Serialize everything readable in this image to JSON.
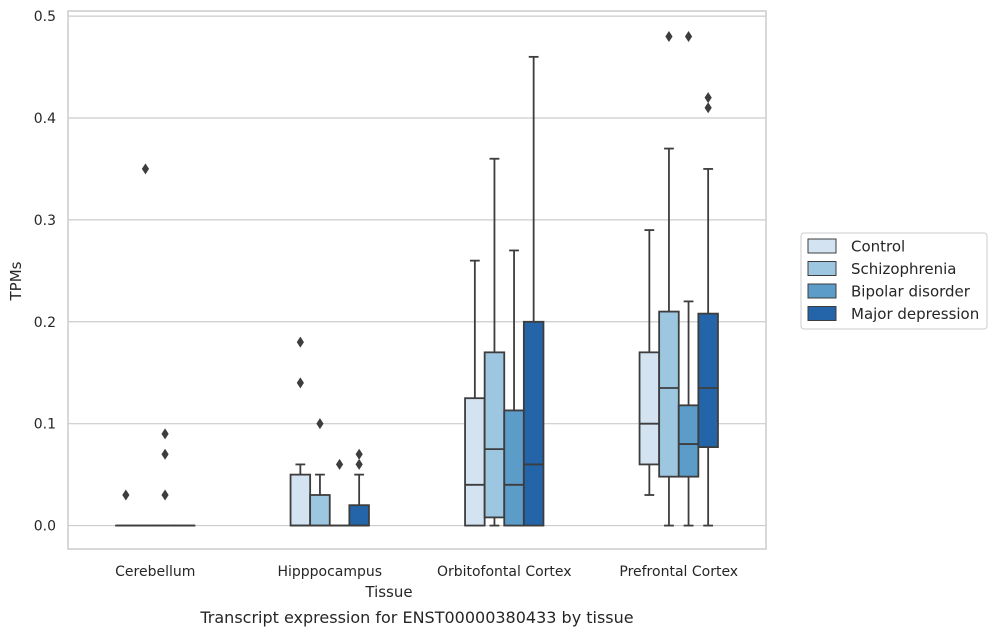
{
  "caption": "Transcript expression for ENST00000380433 by tissue",
  "chart_data": {
    "type": "box",
    "xlabel": "Tissue",
    "ylabel": "TPMs",
    "ylim": [
      -0.023,
      0.505
    ],
    "yticks": [
      "0.0",
      "0.1",
      "0.2",
      "0.3",
      "0.4",
      "0.5"
    ],
    "ytick_values": [
      0,
      0.1,
      0.2,
      0.3,
      0.4,
      0.5
    ],
    "categories": [
      "Cerebellum",
      "Hipppocampus",
      "Orbitofontal Cortex",
      "Prefrontal Cortex"
    ],
    "grid": "horizontal",
    "legend_position": "right",
    "series": [
      {
        "name": "Control",
        "color": "#d3e3f2",
        "boxes": [
          {
            "whislo": 0,
            "q1": 0,
            "med": 0,
            "q3": 0,
            "whishi": 0,
            "fliers": [
              0.03
            ]
          },
          {
            "whislo": 0,
            "q1": 0,
            "med": 0,
            "q3": 0.05,
            "whishi": 0.06,
            "fliers": [
              0.18,
              0.14
            ]
          },
          {
            "whislo": 0,
            "q1": 0,
            "med": 0.04,
            "q3": 0.125,
            "whishi": 0.26,
            "fliers": []
          },
          {
            "whislo": 0.03,
            "q1": 0.06,
            "med": 0.1,
            "q3": 0.17,
            "whishi": 0.29,
            "fliers": []
          }
        ]
      },
      {
        "name": "Schizophrenia",
        "color": "#9dc7e0",
        "boxes": [
          {
            "whislo": 0,
            "q1": 0,
            "med": 0,
            "q3": 0,
            "whishi": 0,
            "fliers": [
              0.35
            ]
          },
          {
            "whislo": 0,
            "q1": 0,
            "med": 0,
            "q3": 0.03,
            "whishi": 0.05,
            "fliers": [
              0.1
            ]
          },
          {
            "whislo": 0,
            "q1": 0.008,
            "med": 0.075,
            "q3": 0.17,
            "whishi": 0.36,
            "fliers": []
          },
          {
            "whislo": 0,
            "q1": 0.048,
            "med": 0.135,
            "q3": 0.21,
            "whishi": 0.37,
            "fliers": [
              0.48
            ]
          }
        ]
      },
      {
        "name": "Bipolar disorder",
        "color": "#5b9cc9",
        "boxes": [
          {
            "whislo": 0,
            "q1": 0,
            "med": 0,
            "q3": 0,
            "whishi": 0,
            "fliers": [
              0.09,
              0.07,
              0.03
            ]
          },
          {
            "whislo": 0,
            "q1": 0,
            "med": 0,
            "q3": 0,
            "whishi": 0,
            "fliers": [
              0.06
            ]
          },
          {
            "whislo": 0,
            "q1": 0,
            "med": 0.04,
            "q3": 0.113,
            "whishi": 0.27,
            "fliers": []
          },
          {
            "whislo": 0,
            "q1": 0.048,
            "med": 0.08,
            "q3": 0.118,
            "whishi": 0.22,
            "fliers": [
              0.48
            ]
          }
        ]
      },
      {
        "name": "Major depression",
        "color": "#2464a8",
        "boxes": [
          {
            "whislo": 0,
            "q1": 0,
            "med": 0,
            "q3": 0,
            "whishi": 0,
            "fliers": []
          },
          {
            "whislo": 0,
            "q1": 0,
            "med": 0,
            "q3": 0.02,
            "whishi": 0.05,
            "fliers": [
              0.07,
              0.06
            ]
          },
          {
            "whislo": 0,
            "q1": 0,
            "med": 0.06,
            "q3": 0.2,
            "whishi": 0.46,
            "fliers": []
          },
          {
            "whislo": 0,
            "q1": 0.077,
            "med": 0.135,
            "q3": 0.208,
            "whishi": 0.35,
            "fliers": [
              0.42,
              0.41
            ]
          }
        ]
      }
    ]
  }
}
